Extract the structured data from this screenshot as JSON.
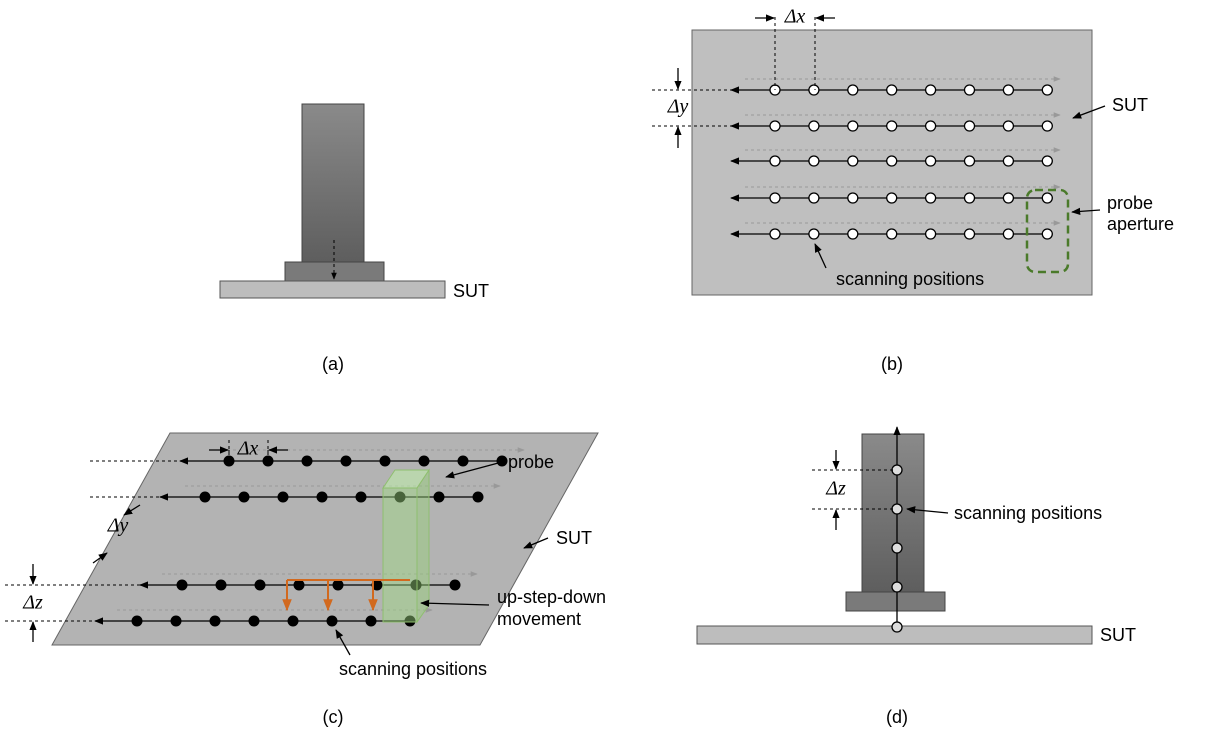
{
  "panel_a": {
    "caption": "(a)",
    "sut": "SUT"
  },
  "panel_b": {
    "caption": "(b)",
    "dx": "Δx",
    "dy": "Δy",
    "sut": "SUT",
    "aperture": [
      "probe",
      "aperture"
    ],
    "positions": "scanning positions"
  },
  "panel_c": {
    "caption": "(c)",
    "dx": "Δx",
    "dy": "Δy",
    "dz": "Δz",
    "probe": "probe",
    "sut": "SUT",
    "movement": [
      "up-step-down",
      "movement"
    ],
    "positions": "scanning positions"
  },
  "panel_d": {
    "caption": "(d)",
    "dz": "Δz",
    "positions": "scanning positions",
    "sut": "SUT"
  }
}
